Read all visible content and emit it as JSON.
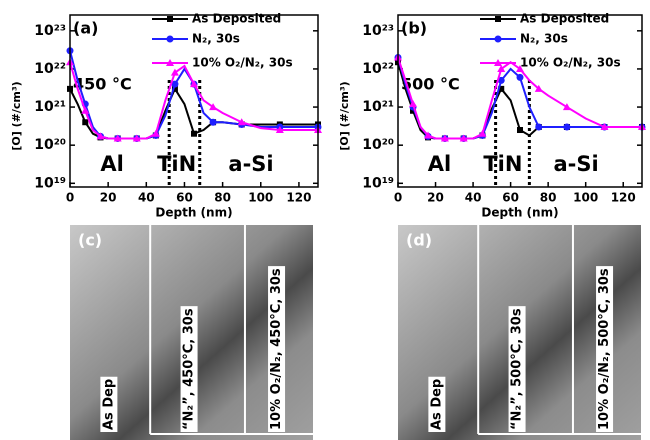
{
  "chart_data": [
    {
      "type": "line",
      "label": "(a)",
      "temperature": "450 °C",
      "xlabel": "Depth (nm)",
      "ylabel": "[O] (#/cm³)",
      "layers": [
        "Al",
        "TiN",
        "a-Si"
      ],
      "log_y": true,
      "boundaries": [
        52,
        68
      ],
      "xlim": [
        0,
        130
      ],
      "xticks": [
        0,
        20,
        40,
        60,
        80,
        100,
        120
      ],
      "ylim": [
        8e+18,
        2.6e+23
      ],
      "yticks": [
        {
          "value": 1e+19,
          "label": "10¹⁹"
        },
        {
          "value": 1e+20,
          "label": "10²⁰"
        },
        {
          "value": 1e+21,
          "label": "10²¹"
        },
        {
          "value": 1e+22,
          "label": "10²²"
        },
        {
          "value": 1e+23,
          "label": "10²³"
        }
      ],
      "x": [
        0,
        4,
        8,
        12,
        16,
        20,
        25,
        30,
        35,
        40,
        45,
        50,
        55,
        60,
        65,
        70,
        75,
        80,
        90,
        100,
        110,
        120,
        130
      ],
      "series": [
        {
          "name": "As Deposited",
          "color": "#000000",
          "marker": "square",
          "values": [
            3e+21,
            1.2e+21,
            4e+20,
            2e+20,
            1.6e+20,
            1.5e+20,
            1.5e+20,
            1.5e+20,
            1.5e+20,
            1.5e+20,
            1.8e+20,
            8e+20,
            3e+21,
            1.2e+21,
            2e+20,
            2.5e+20,
            4e+20,
            4e+20,
            3.5e+20,
            3.5e+20,
            3.5e+20,
            3.5e+20,
            3.5e+20
          ]
        },
        {
          "name": "N₂, 30s",
          "color": "#1f1fff",
          "marker": "circle",
          "values": [
            3e+22,
            5e+21,
            1.2e+21,
            3e+20,
            1.7e+20,
            1.5e+20,
            1.5e+20,
            1.5e+20,
            1.5e+20,
            1.5e+20,
            1.8e+20,
            6e+20,
            4e+21,
            1e+22,
            4e+21,
            7e+20,
            4e+20,
            4e+20,
            3.5e+20,
            3e+20,
            3e+20,
            3e+20,
            3e+20
          ]
        },
        {
          "name": "10% O₂/N₂, 30s",
          "color": "#ff00ff",
          "marker": "triangle",
          "values": [
            1.5e+22,
            3e+21,
            8e+20,
            2.5e+20,
            1.7e+20,
            1.5e+20,
            1.5e+20,
            1.5e+20,
            1.5e+20,
            1.5e+20,
            2e+20,
            1.5e+21,
            8e+21,
            1.2e+22,
            4e+21,
            1.5e+21,
            1e+21,
            7e+20,
            4e+20,
            2.8e+20,
            2.5e+20,
            2.5e+20,
            2.5e+20
          ]
        }
      ]
    },
    {
      "type": "line",
      "label": "(b)",
      "temperature": "500 °C",
      "xlabel": "Depth (nm)",
      "ylabel": "[O] (#/cm³)",
      "layers": [
        "Al",
        "TiN",
        "a-Si"
      ],
      "log_y": true,
      "boundaries": [
        52,
        70
      ],
      "xlim": [
        0,
        130
      ],
      "xticks": [
        0,
        20,
        40,
        60,
        80,
        100,
        120
      ],
      "ylim": [
        8e+18,
        2.6e+23
      ],
      "yticks": [
        {
          "value": 1e+19,
          "label": "10¹⁹"
        },
        {
          "value": 1e+20,
          "label": "10²⁰"
        },
        {
          "value": 1e+21,
          "label": "10²¹"
        },
        {
          "value": 1e+22,
          "label": "10²²"
        },
        {
          "value": 1e+23,
          "label": "10²³"
        }
      ],
      "x": [
        0,
        4,
        8,
        12,
        16,
        20,
        25,
        30,
        35,
        40,
        45,
        50,
        55,
        60,
        65,
        70,
        75,
        80,
        90,
        100,
        110,
        120,
        130
      ],
      "series": [
        {
          "name": "As Deposited",
          "color": "#000000",
          "marker": "square",
          "values": [
            1.5e+22,
            3e+21,
            8e+20,
            2.5e+20,
            1.6e+20,
            1.5e+20,
            1.5e+20,
            1.5e+20,
            1.5e+20,
            1.5e+20,
            1.8e+20,
            9e+20,
            3e+21,
            1.5e+21,
            2.5e+20,
            1.8e+20,
            3e+20,
            3e+20,
            3e+20,
            3e+20,
            3e+20,
            3e+20,
            3e+20
          ]
        },
        {
          "name": "N₂, 30s",
          "color": "#1f1fff",
          "marker": "circle",
          "values": [
            2e+22,
            4e+21,
            1e+21,
            3e+20,
            1.7e+20,
            1.5e+20,
            1.5e+20,
            1.5e+20,
            1.5e+20,
            1.5e+20,
            1.8e+20,
            7e+20,
            5e+21,
            1e+22,
            6e+21,
            1e+21,
            3e+20,
            3e+20,
            3e+20,
            3e+20,
            3e+20,
            3e+20,
            3e+20
          ]
        },
        {
          "name": "10% O₂/N₂, 30s",
          "color": "#ff00ff",
          "marker": "triangle",
          "values": [
            2e+22,
            5e+21,
            1.2e+21,
            3e+20,
            1.8e+20,
            1.5e+20,
            1.5e+20,
            1.5e+20,
            1.5e+20,
            1.5e+20,
            2e+20,
            1.5e+21,
            1e+22,
            1.5e+22,
            1e+22,
            5e+21,
            3e+21,
            2e+21,
            1e+21,
            5e+20,
            3e+20,
            3e+20,
            3e+20
          ]
        }
      ]
    }
  ],
  "images": [
    {
      "label": "(c)",
      "captions": [
        "As Dep",
        "“N₂”, 450°C, 30s",
        "10% O₂/N₂, 450°C, 30s"
      ]
    },
    {
      "label": "(d)",
      "captions": [
        "As Dep",
        "“N₂”, 500°C, 30s",
        "10% O₂/N₂, 500°C, 30s"
      ]
    }
  ]
}
